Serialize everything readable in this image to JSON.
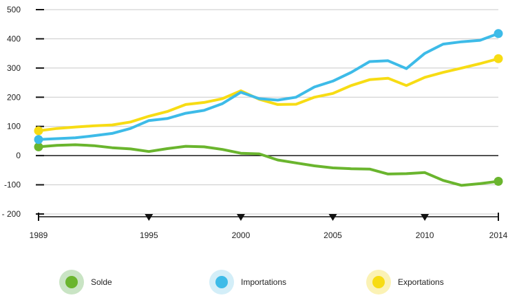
{
  "chart_data": {
    "type": "line",
    "x": [
      1989,
      1990,
      1991,
      1992,
      1993,
      1994,
      1995,
      1996,
      1997,
      1998,
      1999,
      2000,
      2001,
      2002,
      2003,
      2004,
      2005,
      2006,
      2007,
      2008,
      2009,
      2010,
      2011,
      2012,
      2013,
      2014
    ],
    "x_ticks": [
      "1989",
      "1995",
      "2000",
      "2005",
      "2010",
      "2014"
    ],
    "y_ticks": [
      "500",
      "400",
      "300",
      "200",
      "100",
      "0",
      "-100",
      "- 200"
    ],
    "ylim": [
      -200,
      500
    ],
    "grid": true,
    "legend_position": "bottom",
    "series": [
      {
        "name": "Solde",
        "color": "#6ab52e",
        "values": [
          30,
          35,
          37,
          34,
          27,
          23,
          14,
          24,
          32,
          30,
          21,
          8,
          6,
          -15,
          -25,
          -35,
          -42,
          -45,
          -46,
          -63,
          -62,
          -58,
          -85,
          -102,
          -96,
          -88
        ]
      },
      {
        "name": "Importations",
        "color": "#3dbbe8",
        "values": [
          55,
          58,
          61,
          68,
          76,
          93,
          120,
          127,
          145,
          155,
          178,
          217,
          195,
          190,
          200,
          235,
          255,
          285,
          322,
          325,
          298,
          350,
          382,
          390,
          395,
          418
        ]
      },
      {
        "name": "Exportations",
        "color": "#f7dc14",
        "values": [
          85,
          93,
          98,
          102,
          105,
          115,
          135,
          151,
          175,
          182,
          195,
          222,
          193,
          175,
          176,
          200,
          213,
          240,
          260,
          265,
          240,
          268,
          285,
          300,
          315,
          332
        ]
      }
    ]
  },
  "legend": [
    {
      "label": "Solde",
      "color": "#6ab52e",
      "halo": "#c9e4c4"
    },
    {
      "label": "Importations",
      "color": "#3dbbe8",
      "halo": "#d3eef8"
    },
    {
      "label": "Exportations",
      "color": "#f7dc14",
      "halo": "#fbf2b5"
    }
  ]
}
